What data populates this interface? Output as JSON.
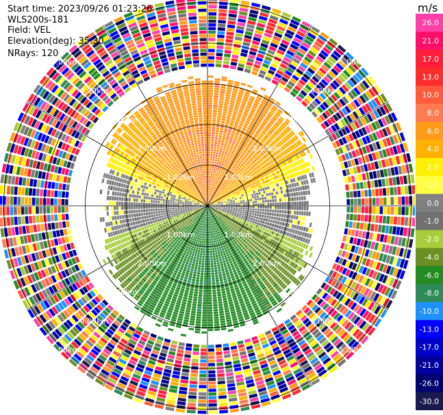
{
  "header": {
    "start_time": "Start time: 2023/09/26 01:23:26",
    "instrument": "WLS200s-181",
    "field": "Field: VEL",
    "elevation": "Elevation(deg): 35.30",
    "nrays": "NRays: 120"
  },
  "colorbar": {
    "unit": "m/s",
    "ticks": [
      "26.0",
      "21.0",
      "17.0",
      "13.0",
      "10.0",
      "8.0",
      "6.0",
      "4.0",
      "2.0",
      "1.0",
      "0.0",
      "-1.0",
      "-2.0",
      "-4.0",
      "-6.0",
      "-8.0",
      "-10.0",
      "-13.0",
      "-17.0",
      "-21.0",
      "-26.0",
      "-30.0"
    ],
    "colors": [
      "#ff3fa8",
      "#ff0f6a",
      "#ff1f3a",
      "#fb2d2d",
      "#ff5a3c",
      "#ff7b52",
      "#ff9a1a",
      "#ffb000",
      "#ffef00",
      "#ffff44",
      "#808080",
      "#707070",
      "#a8cc3a",
      "#6b8f23",
      "#228b22",
      "#2e8b57",
      "#1e90ff",
      "#0000ff",
      "#0000c8",
      "#00009a",
      "#000070",
      "#1a1a4e"
    ]
  },
  "chart_data": {
    "type": "heatmap",
    "projection": "polar PPI",
    "field": "VEL",
    "units": "m/s",
    "nrays": 120,
    "range_rings_km": [
      1.0,
      2.0,
      3.0,
      4.0,
      5.0
    ],
    "ring_label_suffix": "km",
    "azimuth_lines_deg": [
      0,
      30,
      60,
      90,
      120,
      150,
      180,
      210,
      240,
      270,
      300,
      330
    ],
    "clean_data_max_range_km": 3.3,
    "noise_from_range_km": 3.4,
    "approx_velocity_sectors": [
      {
        "sector": "north",
        "value_range": [
          6.0,
          8.0
        ]
      },
      {
        "sector": "northeast/northwest near 2-3 km",
        "value_range": [
          2.0,
          4.0
        ]
      },
      {
        "sector": "east-west near zero",
        "value_range": [
          -1.0,
          1.0
        ]
      },
      {
        "sector": "southwest/southeast",
        "value_range": [
          -2.0,
          -4.0
        ]
      },
      {
        "sector": "south",
        "value_range": [
          -6.0,
          -8.0
        ]
      }
    ]
  }
}
